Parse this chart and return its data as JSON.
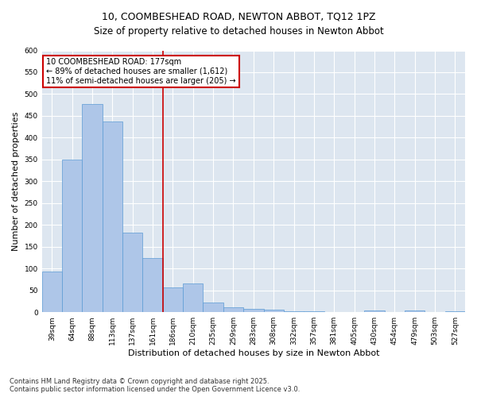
{
  "title": "10, COOMBESHEAD ROAD, NEWTON ABBOT, TQ12 1PZ",
  "subtitle": "Size of property relative to detached houses in Newton Abbot",
  "xlabel": "Distribution of detached houses by size in Newton Abbot",
  "ylabel": "Number of detached properties",
  "categories": [
    "39sqm",
    "64sqm",
    "88sqm",
    "113sqm",
    "137sqm",
    "161sqm",
    "186sqm",
    "210sqm",
    "235sqm",
    "259sqm",
    "283sqm",
    "308sqm",
    "332sqm",
    "357sqm",
    "381sqm",
    "405sqm",
    "430sqm",
    "454sqm",
    "479sqm",
    "503sqm",
    "527sqm"
  ],
  "values": [
    93,
    350,
    477,
    438,
    183,
    125,
    57,
    65,
    22,
    12,
    7,
    5,
    2,
    2,
    1,
    1,
    4,
    0,
    4,
    0,
    3
  ],
  "bar_color": "#aec6e8",
  "bar_edge_color": "#5b9bd5",
  "vline_x": 5.5,
  "vline_color": "#cc0000",
  "annotation_text": "10 COOMBESHEAD ROAD: 177sqm\n← 89% of detached houses are smaller (1,612)\n11% of semi-detached houses are larger (205) →",
  "annotation_box_color": "#ffffff",
  "annotation_box_edge": "#cc0000",
  "ylim": [
    0,
    600
  ],
  "yticks": [
    0,
    50,
    100,
    150,
    200,
    250,
    300,
    350,
    400,
    450,
    500,
    550,
    600
  ],
  "background_color": "#dde6f0",
  "footer": "Contains HM Land Registry data © Crown copyright and database right 2025.\nContains public sector information licensed under the Open Government Licence v3.0.",
  "title_fontsize": 9,
  "tick_fontsize": 6.5,
  "label_fontsize": 8,
  "annotation_fontsize": 7,
  "footer_fontsize": 6
}
